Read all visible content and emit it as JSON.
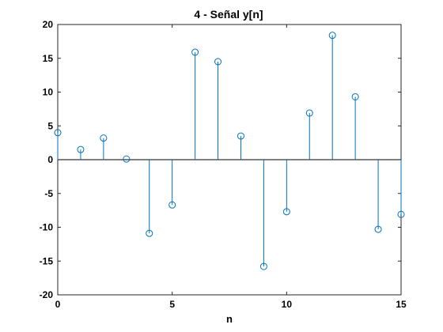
{
  "chart_data": {
    "type": "stem",
    "title": "4 - Señal y[n]",
    "xlabel": "n",
    "ylabel": "",
    "xlim": [
      0,
      15
    ],
    "ylim": [
      -20,
      20
    ],
    "xticks": [
      0,
      5,
      10,
      15
    ],
    "yticks": [
      -20,
      -15,
      -10,
      -5,
      0,
      5,
      10,
      15,
      20
    ],
    "grid": false,
    "series_color": "#0072bd",
    "marker": "circle-open",
    "x": [
      0,
      1,
      2,
      3,
      4,
      5,
      6,
      7,
      8,
      9,
      10,
      11,
      12,
      13,
      14,
      15
    ],
    "y": [
      4.0,
      1.5,
      3.2,
      0.1,
      -10.9,
      -6.7,
      15.9,
      14.5,
      3.5,
      -15.8,
      -7.7,
      6.9,
      18.4,
      9.3,
      -10.3,
      -8.1
    ]
  }
}
